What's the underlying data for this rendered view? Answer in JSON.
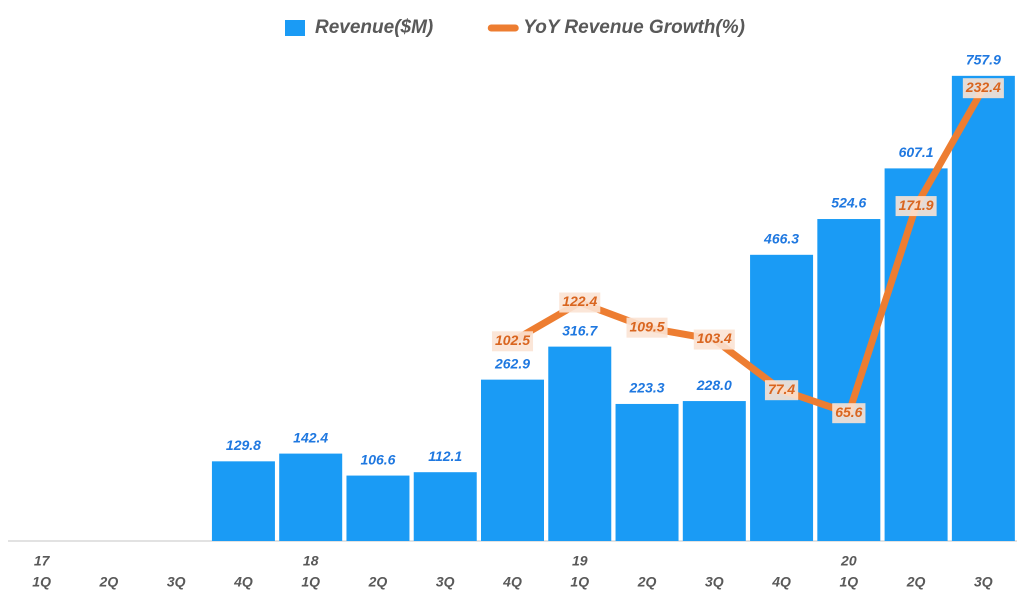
{
  "chart_data": {
    "type": "bar-line",
    "categories": [
      "1Q",
      "2Q",
      "3Q",
      "4Q",
      "1Q",
      "2Q",
      "3Q",
      "4Q",
      "1Q",
      "2Q",
      "3Q",
      "4Q",
      "1Q",
      "2Q",
      "3Q"
    ],
    "years": [
      "17",
      null,
      null,
      null,
      "18",
      null,
      null,
      null,
      "19",
      null,
      null,
      null,
      "20",
      null,
      null
    ],
    "ylim": [
      0,
      800
    ],
    "y2lim": [
      0,
      252
    ],
    "series": [
      {
        "name": "Revenue($M)",
        "type": "bar",
        "color": "#1a9bf5",
        "values": [
          null,
          null,
          null,
          129.8,
          142.4,
          106.6,
          112.1,
          262.9,
          316.7,
          223.3,
          228.0,
          466.3,
          524.6,
          607.1,
          757.9
        ],
        "value_labels": [
          null,
          null,
          null,
          "129.8",
          "142.4",
          "106.6",
          "112.1",
          "262.9",
          "316.7",
          "223.3",
          "228.0",
          "466.3",
          "524.6",
          "607.1",
          "757.9"
        ]
      },
      {
        "name": "YoY Revenue Growth(%)",
        "type": "line",
        "axis": "y2",
        "color": "#ed7d31",
        "values": [
          null,
          null,
          null,
          null,
          null,
          null,
          null,
          102.5,
          122.4,
          109.5,
          103.4,
          77.4,
          65.6,
          171.9,
          232.4
        ]
      }
    ]
  }
}
